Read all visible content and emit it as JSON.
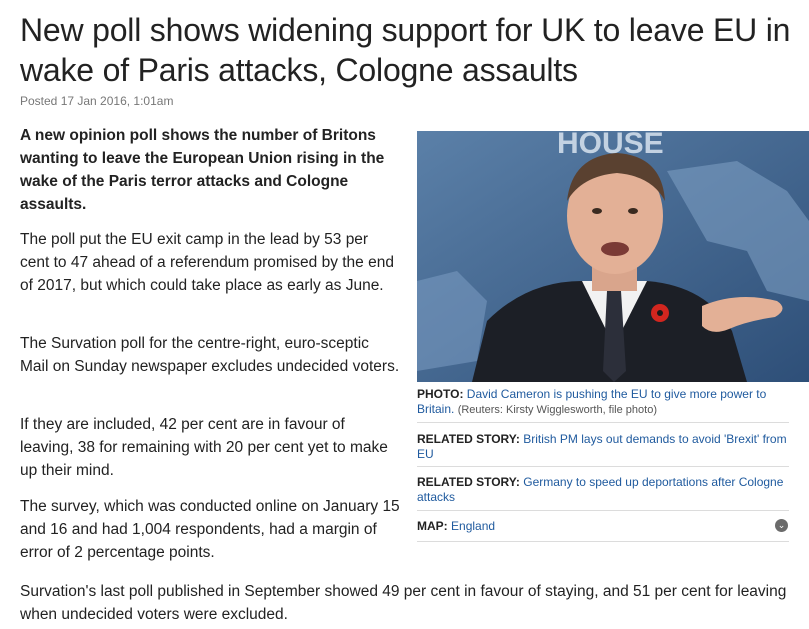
{
  "article": {
    "headline": "New poll shows widening support for UK to leave EU in wake of Paris attacks, Cologne assaults",
    "posted": "Posted 17 Jan 2016, 1:01am",
    "lead": "A new opinion poll shows the number of Britons wanting to leave the European Union rising in the wake of the Paris terror attacks and Cologne assaults.",
    "paragraphs": [
      "The poll put the EU exit camp in the lead by 53 per cent to 47 ahead of a referendum promised by the end of 2017, but which could take place as early as June.",
      "The Survation poll for the centre-right, euro-sceptic Mail on Sunday newspaper excludes undecided voters.",
      "If they are included, 42 per cent are in favour of leaving, 38 for remaining with 20 per cent yet to make up their mind.",
      "The survey, which was conducted online on January 15 and 16 and had 1,004 respondents, had a margin of error of 2 percentage points.",
      "Survation's last poll published in September showed 49 per cent in favour of staying, and 51 per cent for leaving when undecided voters were excluded."
    ]
  },
  "sidebar": {
    "photo_label": "PHOTO:",
    "photo_caption": "David Cameron is pushing the EU to give more power to Britain.",
    "photo_credit": "(Reuters: Kirsty Wigglesworth, file photo)",
    "photo_bg_text": "HOUSE",
    "related": [
      {
        "label": "RELATED STORY:",
        "text": "British PM lays out demands to avoid 'Brexit' from EU"
      },
      {
        "label": "RELATED STORY:",
        "text": "Germany to speed up deportations after Cologne attacks"
      }
    ],
    "map_label": "MAP:",
    "map_text": "England",
    "expand_glyph": "⌄"
  }
}
